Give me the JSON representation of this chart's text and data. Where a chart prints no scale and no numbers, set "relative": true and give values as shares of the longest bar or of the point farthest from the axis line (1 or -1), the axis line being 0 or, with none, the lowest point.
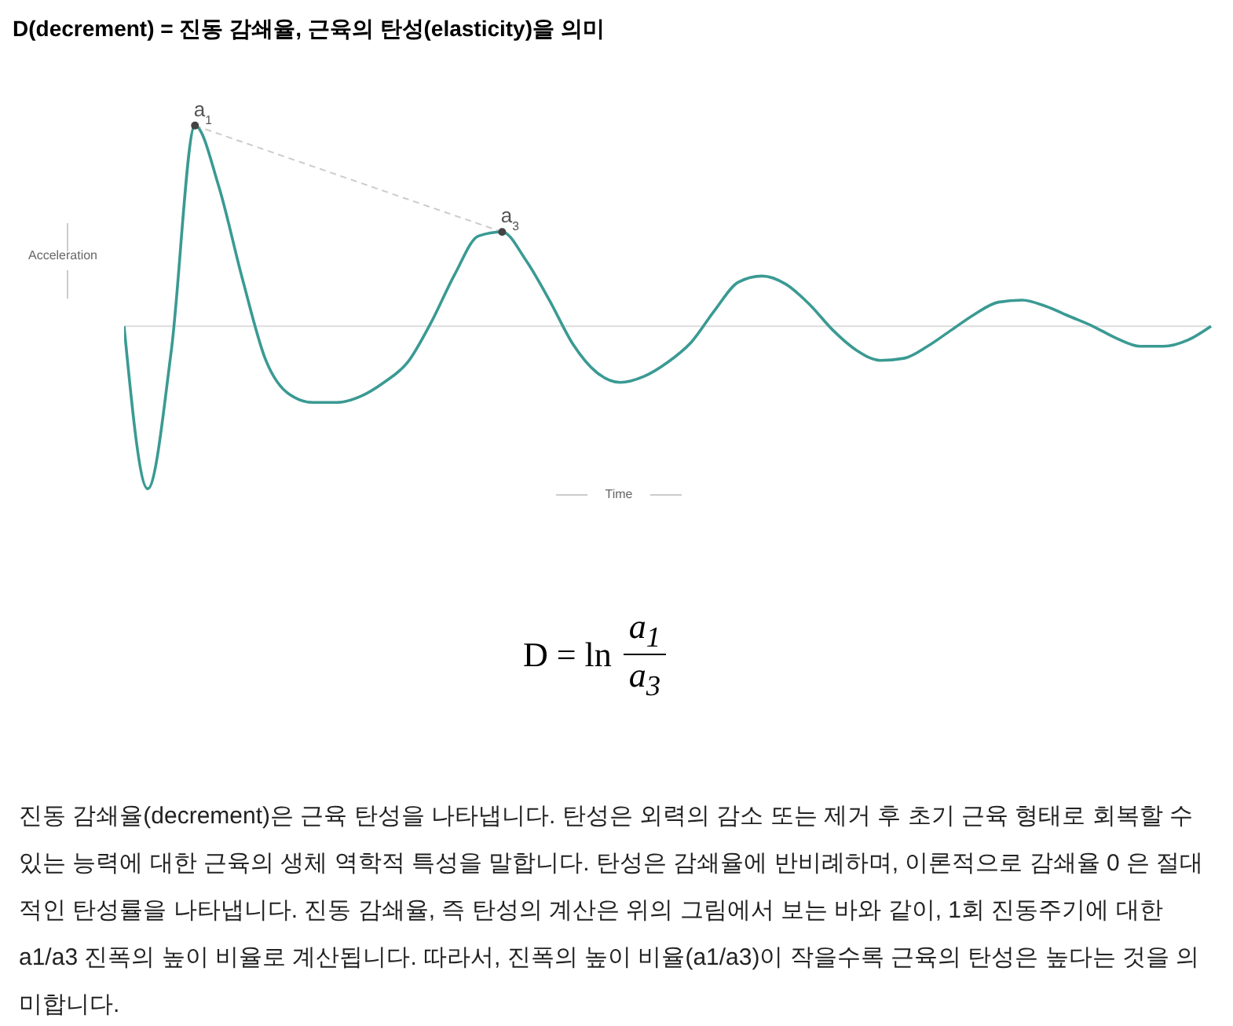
{
  "chart_data": {
    "type": "line",
    "title": "D(decrement) = 진동 감쇄율, 근육의 탄성(elasticity)을 의미",
    "xlabel": "Time",
    "ylabel": "Acceleration",
    "relative": true,
    "marker": "none",
    "categories": [
      null,
      null,
      null,
      null,
      null,
      null,
      null,
      null,
      null,
      null,
      null,
      null,
      null,
      null,
      null,
      null,
      null,
      null,
      null,
      null,
      null,
      null,
      null,
      null,
      null,
      null,
      null,
      null,
      null,
      null,
      null,
      null,
      null,
      null,
      null,
      null,
      null,
      null,
      null,
      null,
      null,
      null,
      null,
      null,
      null,
      null,
      null
    ],
    "series": [
      {
        "color": "#3a9a93",
        "values": [
          0,
          -0.81,
          -0.12,
          1,
          0.7,
          0.24,
          -0.17,
          -0.34,
          -0.38,
          -0.38,
          -0.35,
          -0.28,
          -0.18,
          0.02,
          0.26,
          0.45,
          0.47,
          0.33,
          0.13,
          -0.09,
          -0.23,
          -0.28,
          -0.25,
          -0.18,
          -0.08,
          0.08,
          0.22,
          0.25,
          0.21,
          0.11,
          -0.02,
          -0.12,
          -0.17,
          -0.16,
          -0.1,
          -0.02,
          0.06,
          0.12,
          0.13,
          0.1,
          0.05,
          0,
          -0.06,
          -0.1,
          -0.1,
          -0.07,
          0
        ]
      }
    ],
    "annotations": [
      {
        "text": "a$_{1}$",
        "y": 1
      },
      {
        "text": "a$_{3}$",
        "y": 0.47
      },
      "D = ln",
      "a$_{1}$",
      "a$_{3}$",
      "진동 감쇄율(decrement)은 근육 탄성을 나타냅니다. 탄성은 외력의 감소 또는 제거 후 초기 근육 형태로 회복할 수 있는 능력에 대한 근육의 생체 역학적 특성을 말합니다. 탄성은 감쇄율에 반비례하며, 이론적으로 감쇄율 0 은 절대적인 탄성률을 나타냅니다. 진동 감쇄율, 즉 탄성의 계산은 위의 그림에서 보는 바와 같이, 1회 진동주기에 대한 a1/a3 진폭의 높이 비율로 계산됩니다. 따라서, 진폭의 높이 비율(a1/a3)이 작을수록 근육의 탄성은 높다는 것을 의미합니다."
    ]
  }
}
